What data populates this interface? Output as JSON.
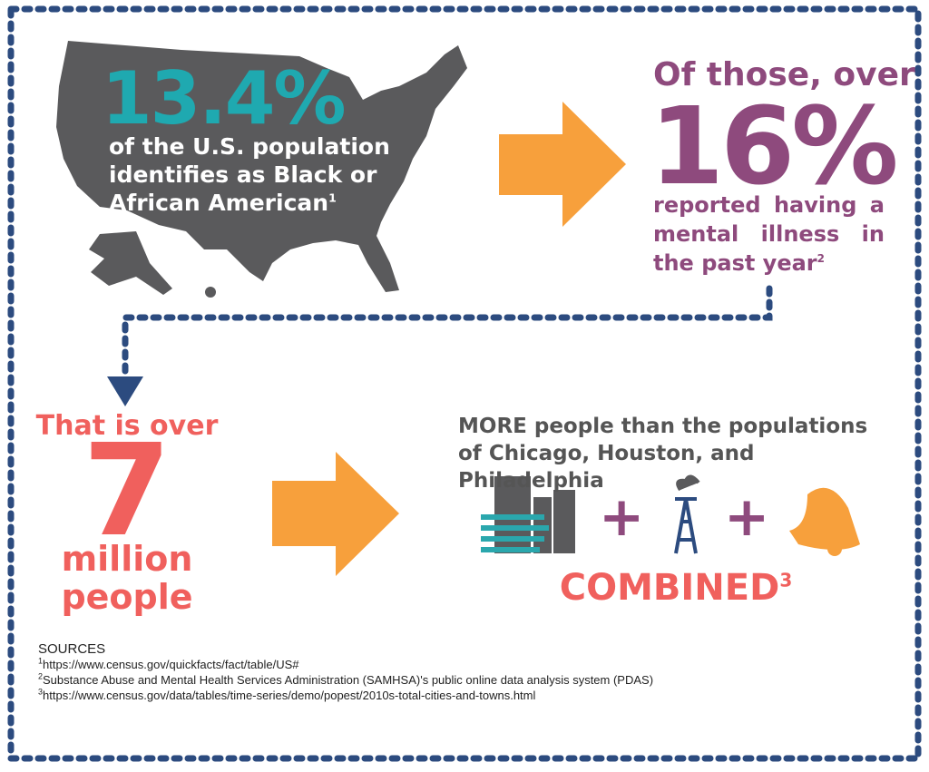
{
  "left_top": {
    "stat": "13.4%",
    "text": "of the U.S. population identifies as Black or African American",
    "note": "1"
  },
  "right_top": {
    "lead": "Of those, over",
    "stat": "16%",
    "text": "reported having a mental illness in the past year",
    "note": "2"
  },
  "left_bottom": {
    "lead": "That is over",
    "stat": "7",
    "text": "million people"
  },
  "right_bottom": {
    "lead": "MORE people than the populations of Chicago, Houston, and Philadelphia",
    "plus": "+",
    "result": "COMBINED",
    "note": "3"
  },
  "sources": {
    "title": "SOURCES",
    "items": [
      {
        "note": "1",
        "text": "https://www.census.gov/quickfacts/fact/table/US#"
      },
      {
        "note": "2",
        "text": "Substance Abuse and Mental Health Services Administration (SAMHSA)'s public online data analysis system (PDAS)"
      },
      {
        "note": "3",
        "text": "https://www.census.gov/data/tables/time-series/demo/popest/2010s-total-cities-and-towns.html"
      }
    ]
  }
}
